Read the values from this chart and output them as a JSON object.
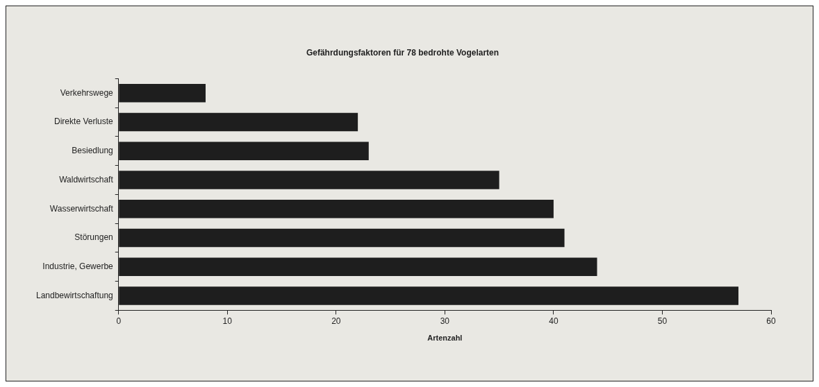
{
  "chart_data": {
    "type": "bar",
    "orientation": "horizontal",
    "title": "Gefährdungsfaktoren für 78 bedrohte Vogelarten",
    "xlabel": "Artenzahl",
    "categories": [
      "Verkehrswege",
      "Direkte Verluste",
      "Besiedlung",
      "Waldwirtschaft",
      "Wasserwirtschaft",
      "Störungen",
      "Industrie, Gewerbe",
      "Landbewirtschaftung"
    ],
    "values": [
      8,
      22,
      23,
      35,
      40,
      41,
      44,
      57
    ],
    "color": "#1e1e1e",
    "xlim": [
      0,
      60
    ],
    "xticks": [
      0,
      10,
      20,
      30,
      40,
      50,
      60
    ],
    "grid": false,
    "legend": false
  }
}
